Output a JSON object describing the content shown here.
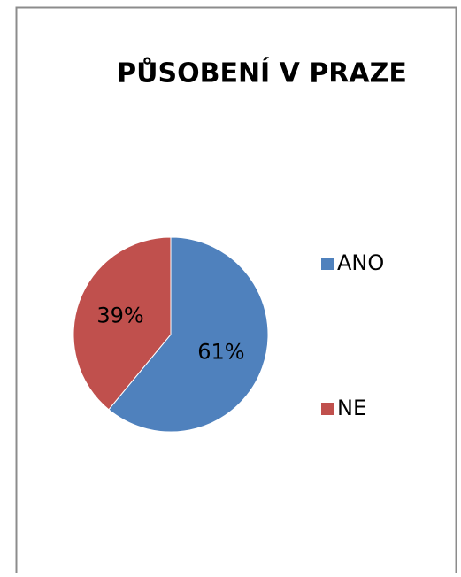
{
  "chart_data": {
    "type": "pie",
    "title": "PŮSOBENÍ V PRAZE",
    "categories": [
      "ANO",
      "NE"
    ],
    "values": [
      61,
      39
    ],
    "value_labels": [
      "61%",
      "39%"
    ],
    "colors": [
      "#4f81bd",
      "#c0504d"
    ],
    "legend": "right"
  }
}
